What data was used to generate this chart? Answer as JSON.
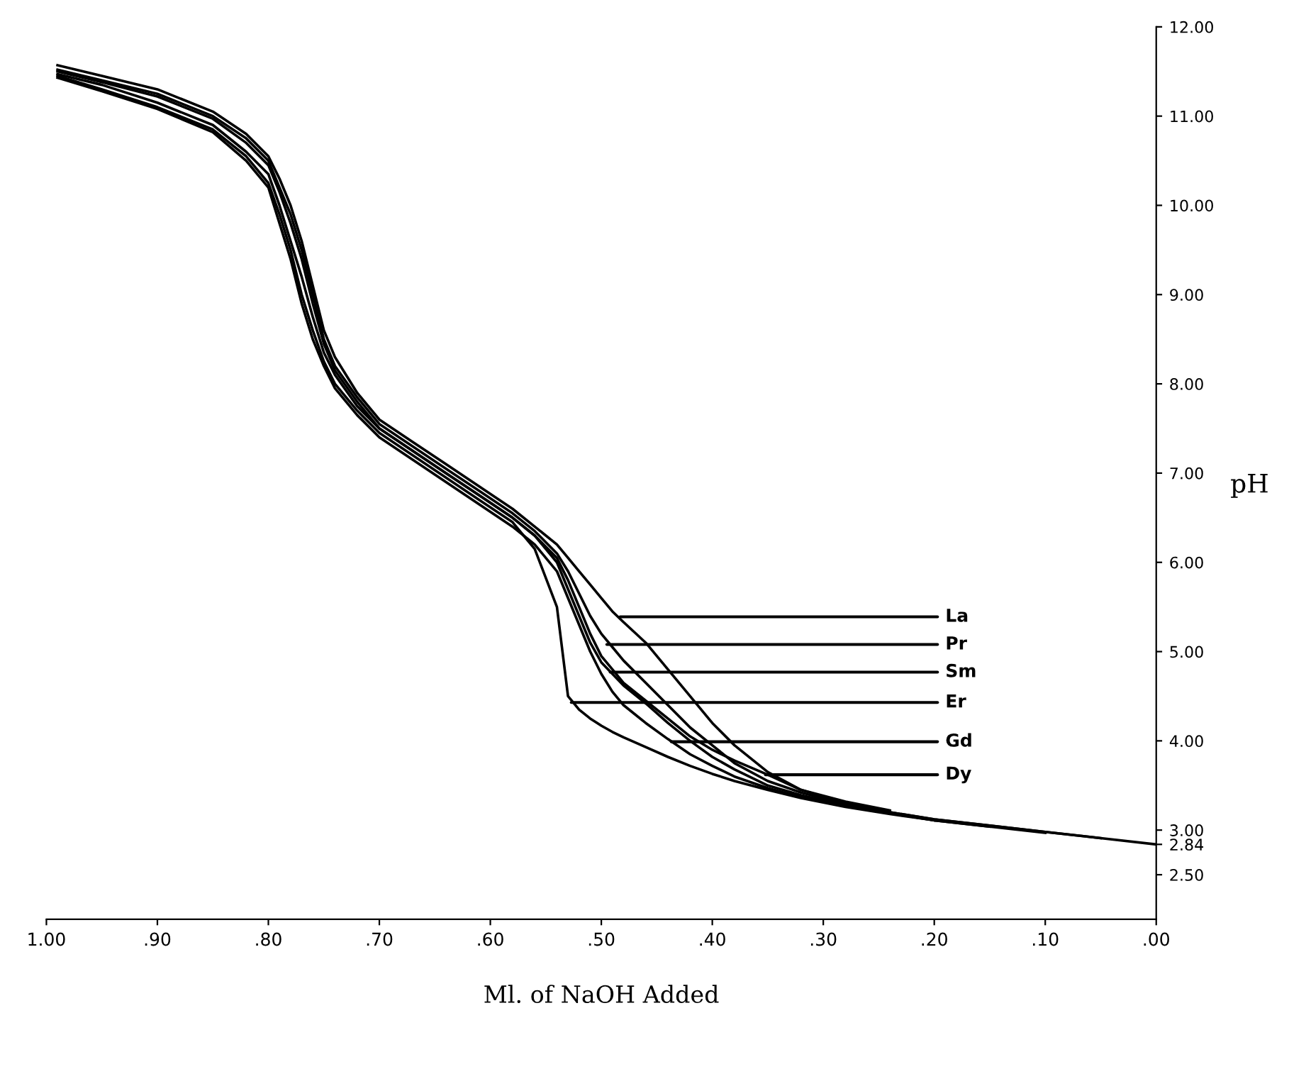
{
  "chart_data": {
    "type": "line",
    "xlabel": "Ml. of NaOH Added",
    "ylabel": "pH",
    "x": [
      0.99,
      0.95,
      0.9,
      0.85,
      0.82,
      0.8,
      0.79,
      0.78,
      0.77,
      0.76,
      0.75,
      0.74,
      0.72,
      0.7,
      0.67,
      0.64,
      0.61,
      0.58,
      0.56,
      0.54,
      0.53,
      0.52,
      0.51,
      0.5,
      0.49,
      0.48,
      0.46,
      0.44,
      0.42,
      0.4,
      0.38,
      0.35,
      0.32,
      0.28,
      0.24,
      0.2,
      0.15,
      0.1,
      0.05,
      0.0
    ],
    "series": [
      {
        "color": "#000000",
        "values": [
          11.57,
          11.45,
          11.3,
          11.05,
          10.8,
          10.55,
          10.3,
          10.0,
          9.6,
          9.1,
          8.6,
          8.3,
          7.9,
          7.6,
          7.35,
          7.1,
          6.85,
          6.6,
          6.4,
          6.2,
          6.05,
          5.9,
          5.75,
          5.6,
          5.45,
          5.33,
          5.1,
          4.8,
          4.5,
          4.2,
          3.95,
          3.65,
          3.45,
          3.3,
          3.2,
          3.12,
          3.05,
          2.98,
          2.91,
          2.84
        ]
      },
      {
        "color": "#000000",
        "values": [
          11.52,
          11.4,
          11.25,
          11.0,
          10.75,
          10.5,
          10.2,
          9.9,
          9.5,
          9.0,
          8.5,
          8.2,
          7.85,
          7.55,
          7.3,
          7.05,
          6.8,
          6.55,
          6.35,
          6.1,
          5.9,
          5.65,
          5.4,
          5.2,
          5.05,
          4.9,
          4.65,
          4.4,
          4.15,
          3.95,
          3.75,
          3.55,
          3.42,
          3.29,
          3.2,
          3.12,
          3.05,
          2.98,
          2.91,
          null
        ]
      },
      {
        "color": "#000000",
        "values": [
          11.5,
          11.38,
          11.22,
          10.97,
          10.7,
          10.45,
          10.15,
          9.8,
          9.4,
          8.9,
          8.45,
          8.15,
          7.8,
          7.5,
          7.25,
          7.0,
          6.75,
          6.5,
          6.3,
          6.0,
          5.7,
          5.4,
          5.1,
          4.88,
          4.75,
          4.62,
          4.42,
          4.2,
          4.0,
          3.82,
          3.68,
          3.5,
          3.39,
          3.28,
          3.19,
          3.11,
          3.04,
          2.97,
          null,
          null
        ]
      },
      {
        "color": "#000000",
        "values": [
          11.45,
          11.3,
          11.1,
          10.85,
          10.55,
          10.25,
          9.9,
          9.5,
          9.0,
          8.6,
          8.25,
          8.0,
          7.7,
          7.45,
          7.2,
          6.95,
          6.7,
          6.45,
          6.15,
          5.5,
          4.5,
          4.35,
          4.25,
          4.17,
          4.1,
          4.04,
          3.93,
          3.82,
          3.72,
          3.63,
          3.55,
          3.45,
          3.36,
          3.26,
          3.18,
          3.11,
          3.04,
          null,
          null,
          null
        ]
      },
      {
        "color": "#000000",
        "values": [
          11.43,
          11.28,
          11.08,
          10.82,
          10.5,
          10.2,
          9.8,
          9.4,
          8.9,
          8.5,
          8.2,
          7.95,
          7.65,
          7.4,
          7.15,
          6.9,
          6.65,
          6.4,
          6.2,
          5.9,
          5.6,
          5.3,
          5.0,
          4.75,
          4.55,
          4.4,
          4.2,
          4.02,
          3.85,
          3.72,
          3.6,
          3.47,
          3.37,
          3.27,
          3.19,
          3.11,
          null,
          null,
          null,
          null
        ]
      },
      {
        "color": "#000000",
        "values": [
          11.47,
          11.35,
          11.15,
          10.9,
          10.6,
          10.35,
          10.0,
          9.6,
          9.2,
          8.75,
          8.35,
          8.1,
          7.75,
          7.5,
          7.25,
          7.0,
          6.75,
          6.5,
          6.3,
          6.05,
          5.8,
          5.5,
          5.2,
          4.95,
          4.8,
          4.65,
          4.45,
          4.25,
          4.05,
          3.9,
          3.78,
          3.62,
          3.45,
          3.32,
          3.22,
          null,
          null,
          null,
          null,
          null
        ]
      }
    ],
    "annotations": [
      {
        "text": "La",
        "x": 0.483,
        "y": 5.39
      },
      {
        "text": "Pr",
        "x": 0.495,
        "y": 5.08
      },
      {
        "text": "Sm",
        "x": 0.492,
        "y": 4.77
      },
      {
        "text": "Er",
        "x": 0.527,
        "y": 4.43
      },
      {
        "text": "Gd",
        "x": 0.437,
        "y": 3.99
      },
      {
        "text": "Dy",
        "x": 0.352,
        "y": 3.62
      }
    ],
    "xlim": [
      1.0,
      0.0
    ],
    "xticks": [
      {
        "value": 1.0,
        "label": "1.00"
      },
      {
        "value": 0.9,
        "label": ".90"
      },
      {
        "value": 0.8,
        "label": ".80"
      },
      {
        "value": 0.7,
        "label": ".70"
      },
      {
        "value": 0.6,
        "label": ".60"
      },
      {
        "value": 0.5,
        "label": ".50"
      },
      {
        "value": 0.4,
        "label": ".40"
      },
      {
        "value": 0.3,
        "label": ".30"
      },
      {
        "value": 0.2,
        "label": ".20"
      },
      {
        "value": 0.1,
        "label": ".10"
      },
      {
        "value": 0.0,
        "label": ".00"
      }
    ],
    "ylim": [
      2.0,
      12.0
    ],
    "yticks": [
      {
        "value": 12,
        "label": "12.00"
      },
      {
        "value": 11,
        "label": "11.00"
      },
      {
        "value": 10,
        "label": "10.00"
      },
      {
        "value": 9,
        "label": "9.00"
      },
      {
        "value": 8,
        "label": "8.00"
      },
      {
        "value": 7,
        "label": "7.00"
      },
      {
        "value": 6,
        "label": "6.00"
      },
      {
        "value": 5,
        "label": "5.00"
      },
      {
        "value": 4,
        "label": "4.00"
      },
      {
        "value": 3,
        "label": "3.00"
      },
      {
        "value": 2.84,
        "label": "2.84"
      },
      {
        "value": 2.5,
        "label": "2.50"
      }
    ],
    "grid": false,
    "legend": false,
    "marker": "none",
    "line_style": "solid"
  }
}
